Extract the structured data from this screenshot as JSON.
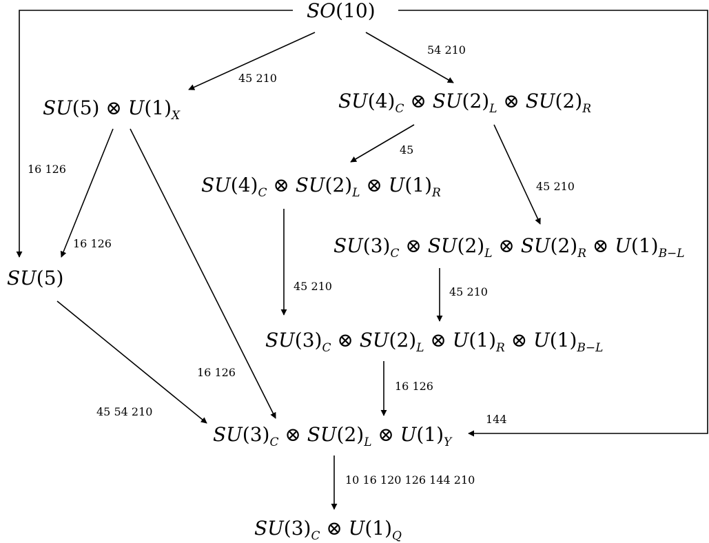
{
  "nodes": {
    "so10": {
      "parts": [
        [
          "i",
          "SO"
        ],
        [
          "t",
          "(10)"
        ]
      ]
    },
    "su5u1x": {
      "parts": [
        [
          "i",
          "SU"
        ],
        [
          "t",
          "(5) ⊗ "
        ],
        [
          "i",
          "U"
        ],
        [
          "t",
          "(1)"
        ],
        [
          "s",
          "X"
        ]
      ]
    },
    "pati_salam": {
      "parts": [
        [
          "i",
          "SU"
        ],
        [
          "t",
          "(4)"
        ],
        [
          "s",
          "C"
        ],
        [
          "t",
          " ⊗ "
        ],
        [
          "i",
          "SU"
        ],
        [
          "t",
          "(2)"
        ],
        [
          "s",
          "L"
        ],
        [
          "t",
          " ⊗ "
        ],
        [
          "i",
          "SU"
        ],
        [
          "t",
          "(2)"
        ],
        [
          "s",
          "R"
        ]
      ]
    },
    "su4su2u1": {
      "parts": [
        [
          "i",
          "SU"
        ],
        [
          "t",
          "(4)"
        ],
        [
          "s",
          "C"
        ],
        [
          "t",
          " ⊗ "
        ],
        [
          "i",
          "SU"
        ],
        [
          "t",
          "(2)"
        ],
        [
          "s",
          "L"
        ],
        [
          "t",
          " ⊗ "
        ],
        [
          "i",
          "U"
        ],
        [
          "t",
          "(1)"
        ],
        [
          "s",
          "R"
        ]
      ]
    },
    "lr": {
      "parts": [
        [
          "i",
          "SU"
        ],
        [
          "t",
          "(3)"
        ],
        [
          "s",
          "C"
        ],
        [
          "t",
          " ⊗ "
        ],
        [
          "i",
          "SU"
        ],
        [
          "t",
          "(2)"
        ],
        [
          "s",
          "L"
        ],
        [
          "t",
          " ⊗ "
        ],
        [
          "i",
          "SU"
        ],
        [
          "t",
          "(2)"
        ],
        [
          "s",
          "R"
        ],
        [
          "t",
          " ⊗ "
        ],
        [
          "i",
          "U"
        ],
        [
          "t",
          "(1)"
        ],
        [
          "s",
          "B−L"
        ]
      ]
    },
    "su5": {
      "parts": [
        [
          "i",
          "SU"
        ],
        [
          "t",
          "(5)"
        ]
      ]
    },
    "su3su2u1u1": {
      "parts": [
        [
          "i",
          "SU"
        ],
        [
          "t",
          "(3)"
        ],
        [
          "s",
          "C"
        ],
        [
          "t",
          " ⊗ "
        ],
        [
          "i",
          "SU"
        ],
        [
          "t",
          "(2)"
        ],
        [
          "s",
          "L"
        ],
        [
          "t",
          " ⊗ "
        ],
        [
          "i",
          "U"
        ],
        [
          "t",
          "(1)"
        ],
        [
          "s",
          "R"
        ],
        [
          "t",
          " ⊗ "
        ],
        [
          "i",
          "U"
        ],
        [
          "t",
          "(1)"
        ],
        [
          "s",
          "B−L"
        ]
      ]
    },
    "sm": {
      "parts": [
        [
          "i",
          "SU"
        ],
        [
          "t",
          "(3)"
        ],
        [
          "s",
          "C"
        ],
        [
          "t",
          " ⊗ "
        ],
        [
          "i",
          "SU"
        ],
        [
          "t",
          "(2)"
        ],
        [
          "s",
          "L"
        ],
        [
          "t",
          " ⊗ "
        ],
        [
          "i",
          "U"
        ],
        [
          "t",
          "(1)"
        ],
        [
          "s",
          "Y"
        ]
      ]
    },
    "final": {
      "parts": [
        [
          "i",
          "SU"
        ],
        [
          "t",
          "(3)"
        ],
        [
          "s",
          "C"
        ],
        [
          "t",
          " ⊗ "
        ],
        [
          "i",
          "U"
        ],
        [
          "t",
          "(1)"
        ],
        [
          "s",
          "Q"
        ]
      ]
    }
  },
  "edge_labels": {
    "so10_to_su5u1x": "45 210",
    "so10_to_pati_salam": "54 210",
    "so10_to_su5": "16 126",
    "su5u1x_to_su5": "16 126",
    "su5u1x_to_sm": "16 126",
    "pati_salam_to_su4su2u1": "45",
    "pati_salam_to_lr": "45 210",
    "su4su2u1_to_su3su2u1u1": "45 210",
    "lr_to_su3su2u1u1": "45 210",
    "su5_to_sm": "45 54 210",
    "su3su2u1u1_to_sm": "16 126",
    "so10_to_sm": "144",
    "sm_to_final": "10 16 120 126 144 210"
  }
}
